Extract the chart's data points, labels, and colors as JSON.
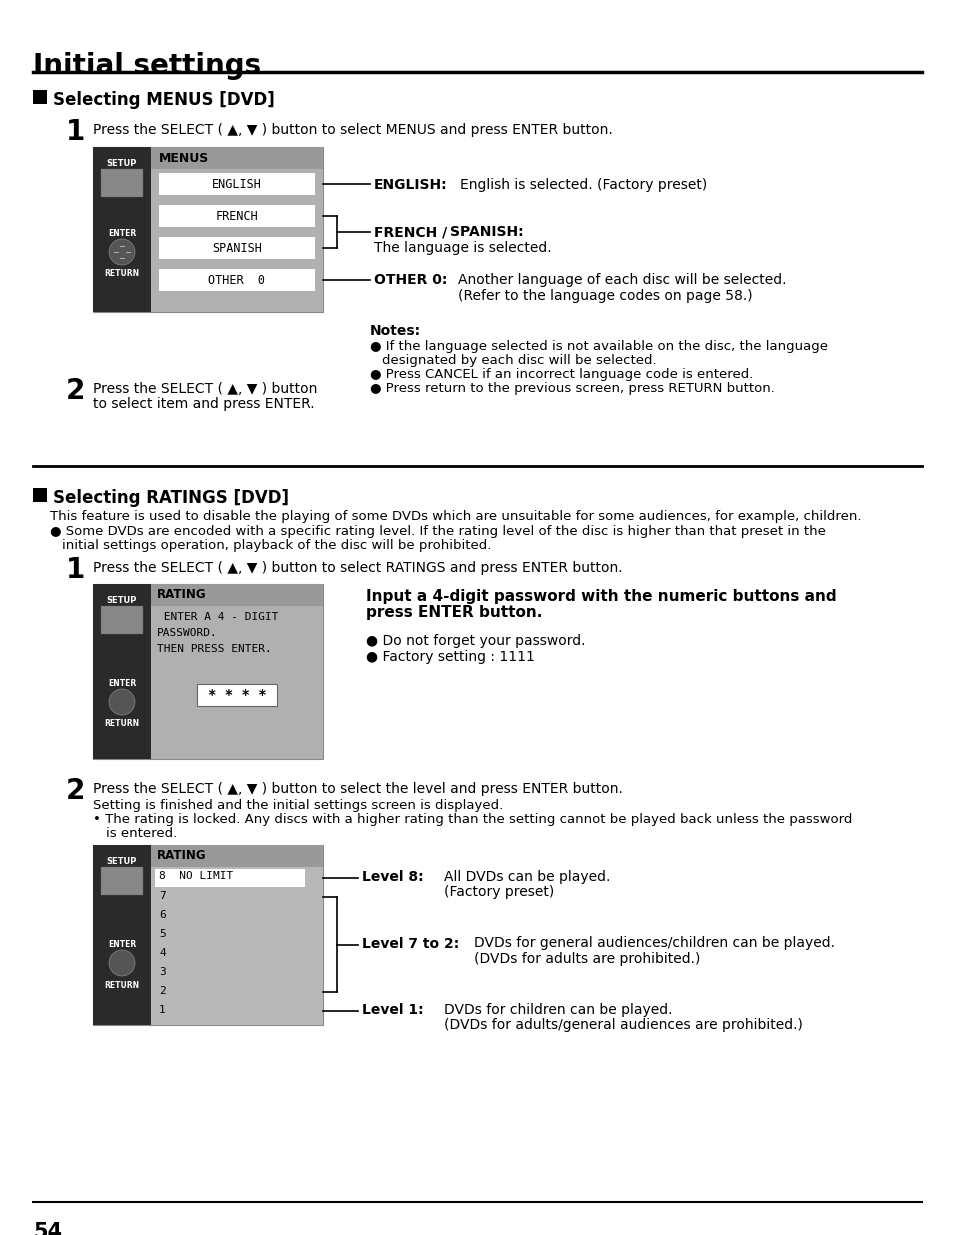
{
  "title": "Initial settings",
  "bg_color": "#ffffff",
  "text_color": "#000000",
  "section1_header": "Selecting MENUS [DVD]",
  "section2_header": "Selecting RATINGS [DVD]",
  "page_number": "54",
  "dark_bg": "#2a2a2a",
  "menu_bg": "#a0a0a0",
  "menu_item_bg": "#ffffff",
  "rating_text_color": "#ffffff"
}
